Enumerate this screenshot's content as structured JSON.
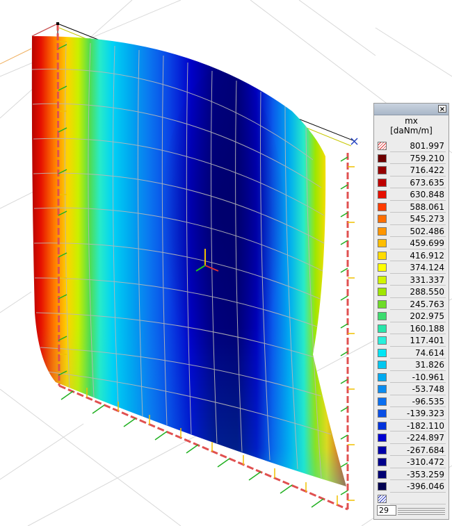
{
  "legend": {
    "title": "mx",
    "unit": "[daNm/m]",
    "close_glyph": "×",
    "entries": [
      {
        "value": "801.997",
        "color": "hatch-red"
      },
      {
        "value": "759.210",
        "color": "#6e0000"
      },
      {
        "value": "716.422",
        "color": "#960000"
      },
      {
        "value": "673.635",
        "color": "#be0000"
      },
      {
        "value": "630.848",
        "color": "#e60f00"
      },
      {
        "value": "588.061",
        "color": "#ff3c00"
      },
      {
        "value": "545.273",
        "color": "#ff6e00"
      },
      {
        "value": "502.486",
        "color": "#ff9600"
      },
      {
        "value": "459.699",
        "color": "#ffbe00"
      },
      {
        "value": "416.912",
        "color": "#ffdc00"
      },
      {
        "value": "374.124",
        "color": "#ffff00"
      },
      {
        "value": "331.337",
        "color": "#d2f500"
      },
      {
        "value": "288.550",
        "color": "#a0e600"
      },
      {
        "value": "245.763",
        "color": "#6edc28"
      },
      {
        "value": "202.975",
        "color": "#3cdc6e"
      },
      {
        "value": "160.188",
        "color": "#28e6aa"
      },
      {
        "value": "117.401",
        "color": "#28f0dc"
      },
      {
        "value": "74.614",
        "color": "#00e6f5"
      },
      {
        "value": "31.826",
        "color": "#00c8f0"
      },
      {
        "value": "-10.961",
        "color": "#00aaf0"
      },
      {
        "value": "-53.748",
        "color": "#0a8cf0"
      },
      {
        "value": "-96.535",
        "color": "#0a6ef0"
      },
      {
        "value": "-139.323",
        "color": "#0a50e6"
      },
      {
        "value": "-182.110",
        "color": "#0032dc"
      },
      {
        "value": "-224.897",
        "color": "#0000d2"
      },
      {
        "value": "-267.684",
        "color": "#0000aa"
      },
      {
        "value": "-310.472",
        "color": "#00008c"
      },
      {
        "value": "-353.259",
        "color": "#000073"
      },
      {
        "value": "-396.046",
        "color": "#000050"
      },
      {
        "value": "",
        "color": "hatch-blue"
      }
    ],
    "steps_value": "29"
  }
}
